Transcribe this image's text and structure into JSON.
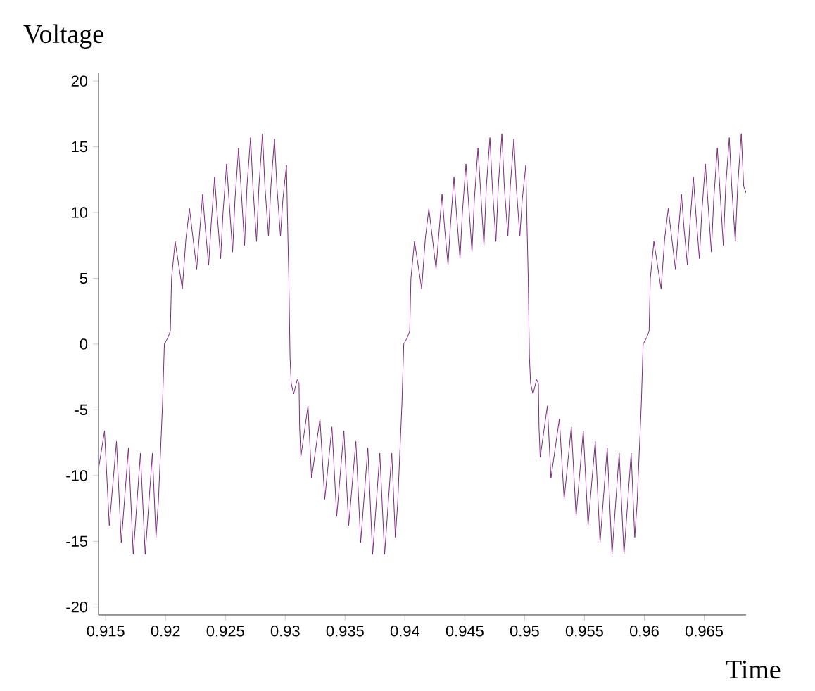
{
  "chart_data": {
    "type": "line",
    "xlabel": "Time",
    "ylabel": "Voltage",
    "xlim": [
      0.9144,
      0.9685
    ],
    "ylim": [
      -20.6,
      20.6
    ],
    "xticks": [
      0.915,
      0.92,
      0.925,
      0.93,
      0.935,
      0.94,
      0.945,
      0.95,
      0.955,
      0.96,
      0.965
    ],
    "yticks": [
      -20,
      -15,
      -10,
      -5,
      0,
      5,
      10,
      15,
      20
    ],
    "series": [
      {
        "color": "#7b2a7e",
        "x": [
          0.9144,
          0.9149,
          0.9153,
          0.9159,
          0.9163,
          0.9169,
          0.9173,
          0.9179,
          0.9183,
          0.9189,
          0.9192,
          0.9194,
          0.91975,
          0.9199,
          0.9202,
          0.9204,
          0.9205,
          0.9208,
          0.9211,
          0.9214,
          0.9217,
          0.922,
          0.9223,
          0.9226,
          0.9228,
          0.9231,
          0.9233,
          0.9236,
          0.9238,
          0.9241,
          0.9243,
          0.9246,
          0.9248,
          0.9251,
          0.9253,
          0.9256,
          0.9258,
          0.9261,
          0.9263,
          0.9266,
          0.9268,
          0.9271,
          0.9273,
          0.9276,
          0.9278,
          0.9281,
          0.9283,
          0.9286,
          0.9288,
          0.9291,
          0.9293,
          0.9296,
          0.9298,
          0.9301,
          0.9302,
          0.9303,
          0.9304,
          0.9305,
          0.9307,
          0.931,
          0.93115,
          0.9312,
          0.9313,
          0.9319,
          0.9322,
          0.9329,
          0.9333,
          0.9339,
          0.9343,
          0.9349,
          0.9353,
          0.9359,
          0.9363,
          0.9369,
          0.9373,
          0.9379,
          0.9383,
          0.9389,
          0.9392,
          0.9394,
          0.93975,
          0.9399,
          0.9402,
          0.9404,
          0.9405,
          0.9408,
          0.9411,
          0.9414,
          0.9417,
          0.942,
          0.9423,
          0.9426,
          0.9428,
          0.9431,
          0.9433,
          0.9436,
          0.9438,
          0.9441,
          0.9443,
          0.9446,
          0.9448,
          0.9451,
          0.9453,
          0.9456,
          0.9458,
          0.9461,
          0.9463,
          0.9466,
          0.9468,
          0.9471,
          0.9473,
          0.9476,
          0.9478,
          0.9481,
          0.9483,
          0.9486,
          0.9488,
          0.9491,
          0.9493,
          0.9496,
          0.9498,
          0.9501,
          0.9502,
          0.9503,
          0.9504,
          0.9505,
          0.9507,
          0.951,
          0.95115,
          0.9512,
          0.9513,
          0.9519,
          0.9522,
          0.9529,
          0.9533,
          0.9539,
          0.9543,
          0.9549,
          0.9553,
          0.9559,
          0.9563,
          0.9569,
          0.9573,
          0.9579,
          0.9583,
          0.9589,
          0.9592,
          0.9594,
          0.95975,
          0.9599,
          0.9602,
          0.9604,
          0.9605,
          0.9608,
          0.9611,
          0.9614,
          0.9617,
          0.962,
          0.9623,
          0.9626,
          0.9628,
          0.9631,
          0.9633,
          0.9636,
          0.9638,
          0.9641,
          0.9643,
          0.9646,
          0.9648,
          0.9651,
          0.9653,
          0.9656,
          0.9658,
          0.9661,
          0.9663,
          0.9666,
          0.9668,
          0.9671,
          0.9673,
          0.9676,
          0.9678,
          0.9681,
          0.9683,
          0.9685
        ],
        "values": [
          -9.5,
          -6.6,
          -13.8,
          -7.4,
          -15.1,
          -7.9,
          -16,
          -8.3,
          -16,
          -8.3,
          -14.7,
          -12,
          -4.5,
          0,
          0.5,
          1,
          5,
          7.8,
          6,
          4.2,
          8,
          10.3,
          8,
          5.7,
          8,
          11.4,
          9,
          6,
          9,
          12.7,
          10,
          6.5,
          10,
          13.7,
          11,
          7,
          11,
          14.9,
          12,
          7.5,
          12,
          15.7,
          12,
          7.8,
          12,
          16,
          12,
          8.2,
          12,
          15.6,
          12,
          8.2,
          11,
          13.6,
          9,
          5,
          -1,
          -3,
          -3.8,
          -2.7,
          -3,
          -6.3,
          -8.6,
          -4.7,
          -10.2,
          -5.7,
          -11.8,
          -6.3,
          -13.1,
          -6.6,
          -13.8,
          -7.4,
          -15.1,
          -7.9,
          -16,
          -8.3,
          -16,
          -8.3,
          -14.7,
          -12,
          -4.5,
          0,
          0.5,
          1,
          5,
          7.8,
          6,
          4.2,
          8,
          10.3,
          8,
          5.7,
          8,
          11.4,
          9,
          6,
          9,
          12.7,
          10,
          6.5,
          10,
          13.7,
          11,
          7,
          11,
          14.9,
          12,
          7.5,
          12,
          15.7,
          12,
          7.8,
          12,
          16,
          12,
          8.2,
          12,
          15.6,
          12,
          8.2,
          11,
          13.6,
          9,
          5,
          -1,
          -3,
          -3.8,
          -2.7,
          -3,
          -6.3,
          -8.6,
          -4.7,
          -10.2,
          -5.7,
          -11.8,
          -6.3,
          -13.1,
          -6.6,
          -13.8,
          -7.4,
          -15.1,
          -7.9,
          -16,
          -8.3,
          -16,
          -8.3,
          -14.7,
          -12,
          -4.5,
          0,
          0.5,
          1,
          5,
          7.8,
          6,
          4.2,
          8,
          10.3,
          8,
          5.7,
          8,
          11.4,
          9,
          6,
          9,
          12.7,
          10,
          6.5,
          10,
          13.7,
          11,
          7,
          11,
          14.9,
          12,
          7.5,
          12,
          15.7,
          12,
          7.8,
          12,
          16,
          12,
          11.5
        ]
      }
    ]
  }
}
